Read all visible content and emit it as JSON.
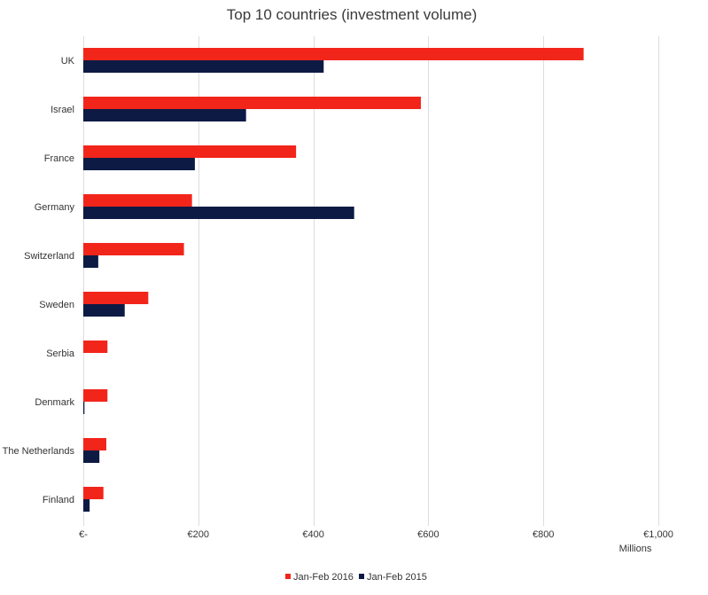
{
  "chart_data": {
    "type": "bar",
    "orientation": "horizontal",
    "title": "Top 10 countries (investment volume)",
    "xlabel": "Millions",
    "ylabel": "",
    "xlim": [
      0,
      1000
    ],
    "x_ticks": [
      0,
      200,
      400,
      600,
      800,
      1000
    ],
    "x_tick_labels": [
      "€-",
      "€200",
      "€400",
      "€600",
      "€800",
      "€1,000"
    ],
    "grid": "vertical",
    "legend_position": "bottom",
    "categories": [
      "UK",
      "Israel",
      "France",
      "Germany",
      "Switzerland",
      "Sweden",
      "Serbia",
      "Denmark",
      "The Netherlands",
      "Finland"
    ],
    "series": [
      {
        "name": "Jan-Feb 2016",
        "color": "#f2251b",
        "values": [
          870,
          587,
          370,
          189,
          175,
          113,
          42,
          42,
          40,
          35
        ]
      },
      {
        "name": "Jan-Feb 2015",
        "color": "#0d1a44",
        "values": [
          418,
          283,
          194,
          471,
          26,
          72,
          0,
          2,
          28,
          11
        ]
      }
    ]
  }
}
